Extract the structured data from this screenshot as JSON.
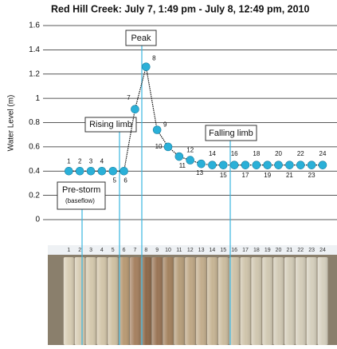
{
  "chart_data": {
    "type": "line",
    "title": "Red Hill Creek: July 7, 1:49 pm - July 8, 12:49 pm, 2010",
    "ylabel": "Water Level (m)",
    "x": [
      1,
      2,
      3,
      4,
      5,
      6,
      7,
      8,
      9,
      10,
      11,
      12,
      13,
      14,
      15,
      16,
      17,
      18,
      19,
      20,
      21,
      22,
      23,
      24
    ],
    "values": [
      0.4,
      0.4,
      0.4,
      0.4,
      0.4,
      0.4,
      0.91,
      1.26,
      0.74,
      0.6,
      0.52,
      0.49,
      0.46,
      0.45,
      0.45,
      0.45,
      0.45,
      0.45,
      0.45,
      0.45,
      0.45,
      0.45,
      0.45,
      0.45
    ],
    "color": "#2ab0d8",
    "xlim": [
      -0.9,
      25.3
    ],
    "ylim": [
      0,
      1.6
    ],
    "yticks": [
      0,
      0.2,
      0.4,
      0.6,
      0.8,
      1,
      1.2,
      1.4,
      1.6
    ],
    "grid": true,
    "annotations": {
      "peak": "Peak",
      "rising": "Rising limb",
      "falling": "Falling limb",
      "prestorm": "Pre-storm",
      "baseflow": "(baseflow)"
    }
  }
}
